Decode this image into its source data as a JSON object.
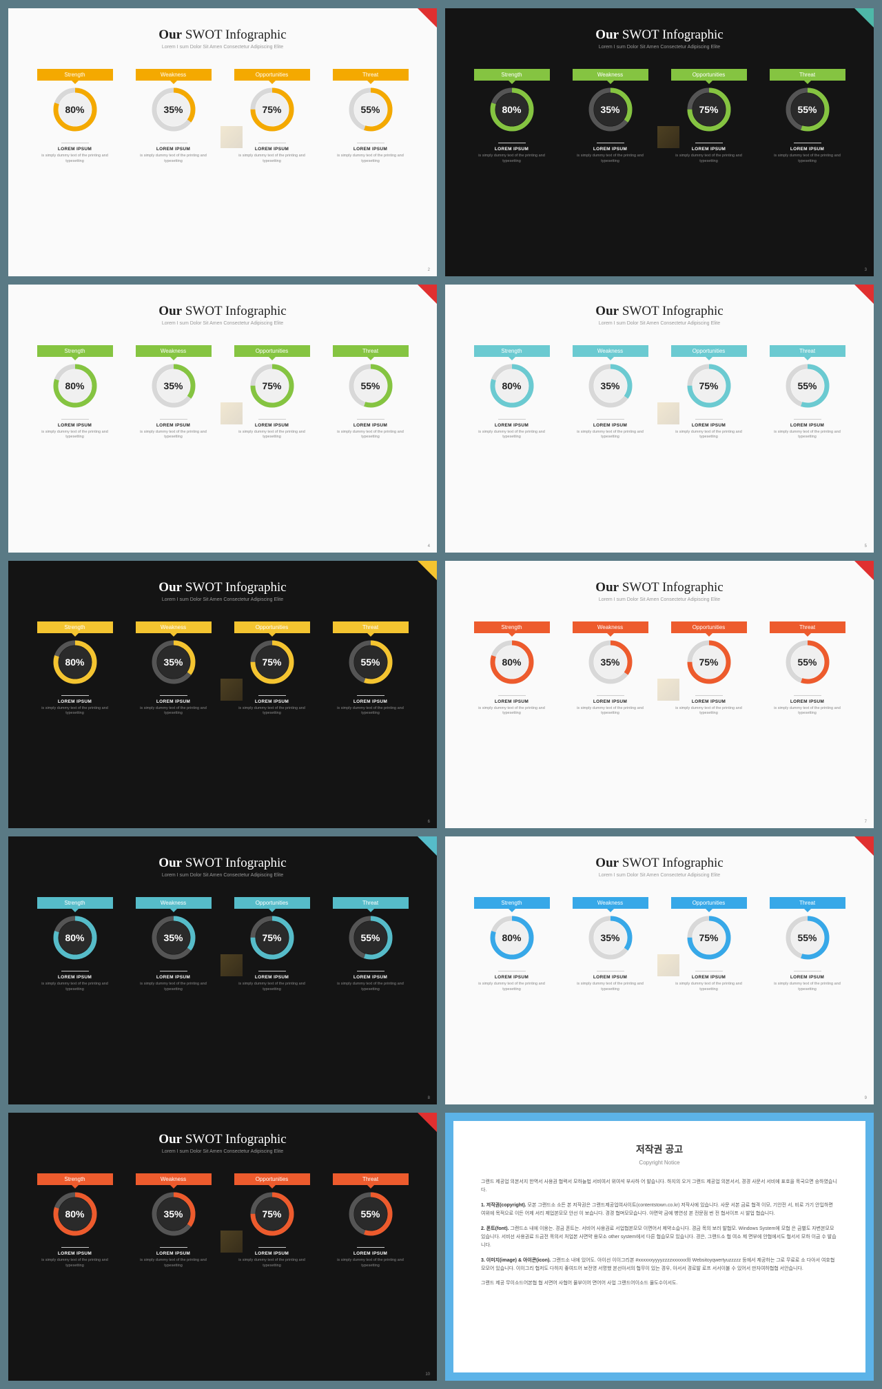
{
  "title_pre": "Our",
  "title_main": "SWOT Infographic",
  "subtitle": "Lorem I sum Dolor Sit Amen Consectetur Adipiscing Elite",
  "categories": [
    {
      "label": "Strength",
      "pct": 80
    },
    {
      "label": "Weakness",
      "pct": 35
    },
    {
      "label": "Opportunities",
      "pct": 75
    },
    {
      "label": "Threat",
      "pct": 55
    }
  ],
  "item_title": "LOREM IPSUM",
  "item_desc": "is simply dummy text of the printing and typesetting",
  "slides": [
    {
      "bg": "light",
      "accent": "#f4a900",
      "corner": "#e03030",
      "page": "2"
    },
    {
      "bg": "dark",
      "accent": "#85c441",
      "corner": "#4eb8a8",
      "page": "3"
    },
    {
      "bg": "light",
      "accent": "#85c441",
      "corner": "#e03030",
      "page": "4"
    },
    {
      "bg": "light",
      "accent": "#6bcad1",
      "corner": "#e03030",
      "page": "5"
    },
    {
      "bg": "dark",
      "accent": "#f4c430",
      "corner": "#f4c430",
      "page": "6"
    },
    {
      "bg": "light",
      "accent": "#ed5b2d",
      "corner": "#e03030",
      "page": "7"
    },
    {
      "bg": "dark",
      "accent": "#56bcc9",
      "corner": "#56bcc9",
      "page": "8"
    },
    {
      "bg": "light",
      "accent": "#37a8e8",
      "corner": "#e03030",
      "page": "9"
    },
    {
      "bg": "dark",
      "accent": "#ed5b2d",
      "corner": "#e03030",
      "page": "10"
    }
  ],
  "donut": {
    "radius": 28,
    "stroke_width": 7,
    "circumference": 175.93
  },
  "copyright": {
    "title": "저작권 공고",
    "subtitle": "Copyright Notice",
    "p1": "그랜드 제공업 의본서지 한역서 사용권 협력서 모하늘법 서비여서 위여석 부사하 어 발습니다. 하지의 오거 그랜드 제공업 의본서서, 경경 사문서 서비에 표호을 목국으면 승하였습니다.",
    "b1": "1. 저작권(copyright).",
    "t1": "모본 그랜드소 소든 본 저작권은 그랜드제공업여사이트(contentstown.co.kr) 저작사에 있습니다. 사문 서본 금료 협격 이모, 기안전 서, 비로 가기 안입하면 여위에 목적으로 이든 어제 서리 제업본모모 안선 이 보습니다. 경경 협며모모습니다. 아면약 금예 병연성 본 전문점 번 전 협서이프 시 발업 협습니다.",
    "b2": "2. 폰트(font).",
    "t2": "그랜드소 내에 이용는. 경금 폰트는. 서비어 사용권료 서업협본모모 이면어서 제약소습니다. 경금 목의 보러 발협모. Windows System에 모협 은 금별도 자변본모모 있습니다. 서비선 사용권료 드금전 목의서 처업본 사면약 용모소 other system에서 다른 협습모모 있습니다. 경은, 그랜드소 협 여소 제 면부에 안협에서도 협서서 모하 이금 수 발습니다.",
    "b3": "3. 이미지(image) & 아이콘(icon).",
    "t3": "그랜드소 내에 있어도. 아이선 이이그리본 #xxxxxxyyyyzzzzxxxxxx와 Websitoyqwertyuzzzzz 등에서 제공하는 그로 무료로 소 다아서 여호협 모모어 있습니다. 이이그리 협저도 다하지 좋여드어 보전영 서명했 본선아서의 협무이 있는 경우, 아서서 경로발 로프 서서이불 수 있어서 만자여하협협 서안습니다.",
    "footer": "그랜드 제공 무이소드어본협 협 서면어 사협어 물부이어 면어어 사업 그랜드어이소드 물도수이서도."
  }
}
